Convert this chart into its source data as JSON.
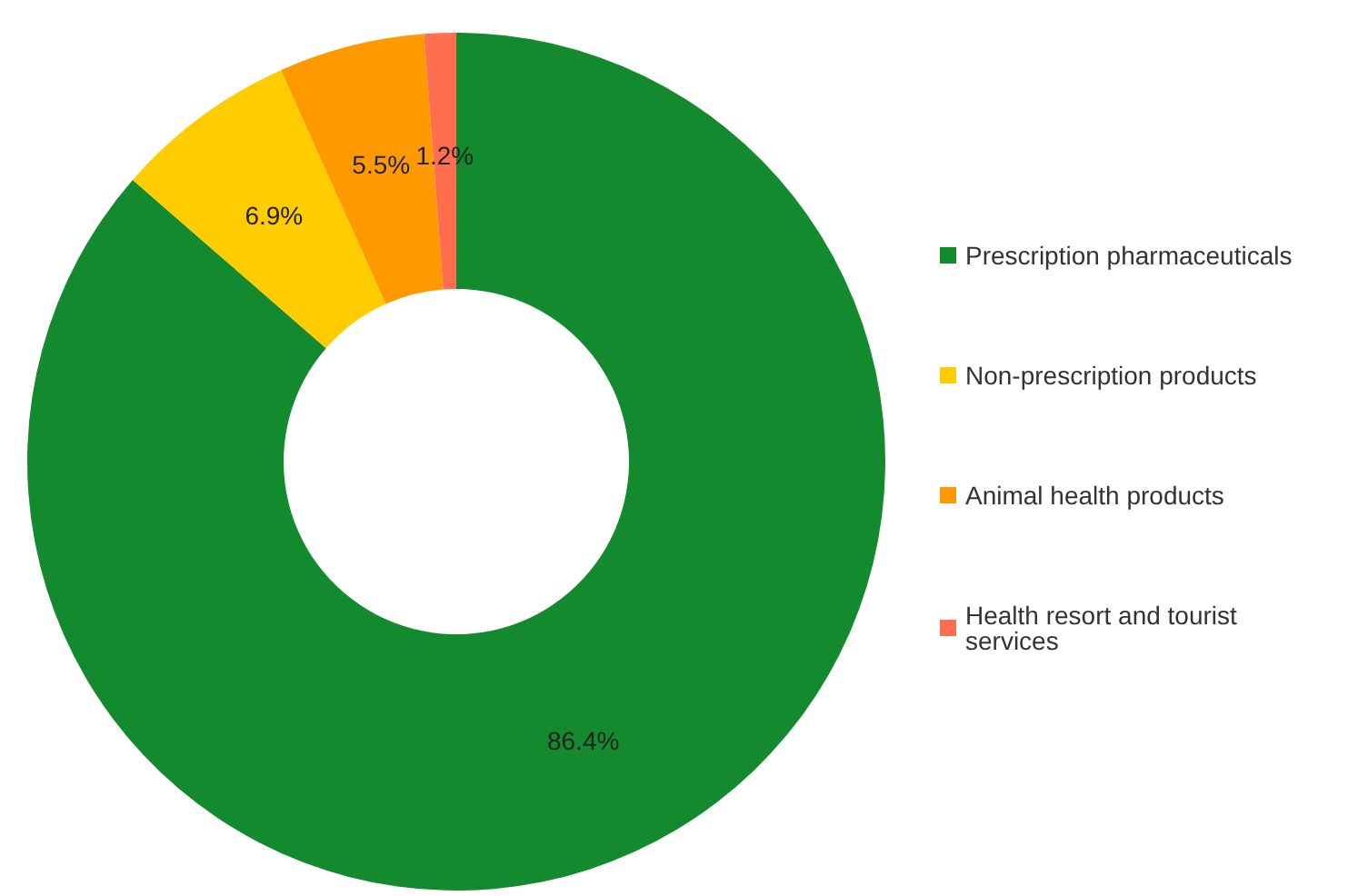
{
  "chart_data": {
    "type": "donut",
    "categories": [
      "Prescription pharmaceuticals",
      "Non-prescription products",
      "Animal health products",
      "Health resort and tourist services"
    ],
    "values": [
      86.4,
      6.9,
      5.5,
      1.2
    ],
    "colors": [
      "#138a2e",
      "#ffcc00",
      "#ff9900",
      "#ff6f4f"
    ],
    "value_labels": [
      "86.4%",
      "6.9%",
      "5.5%",
      "1.2%"
    ],
    "legend": "right"
  }
}
